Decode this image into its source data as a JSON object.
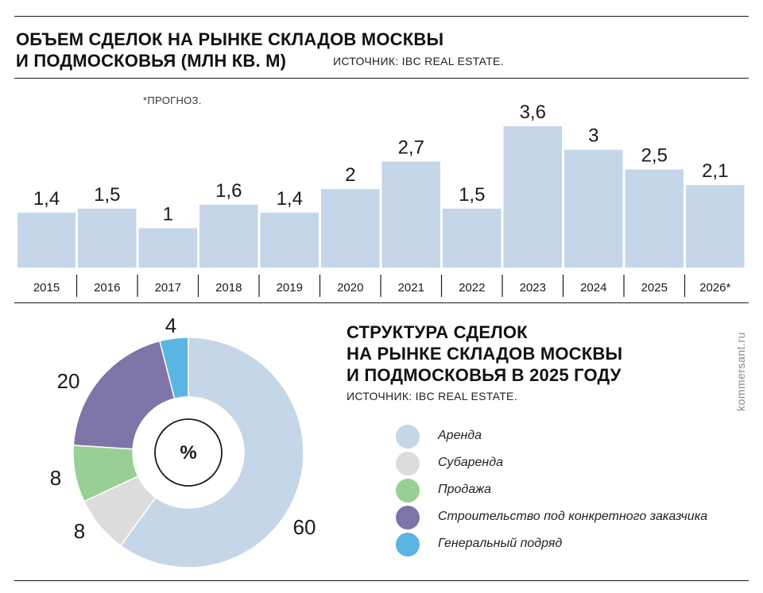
{
  "header": {
    "title_line1": "ОБЪЕМ СДЕЛОК НА РЫНКЕ СКЛАДОВ МОСКВЫ",
    "title_line2": "И ПОДМОСКОВЬЯ (МЛН КВ. М)",
    "source": "ИСТОЧНИК: IBC REAL ESTATE.",
    "note": "*ПРОГНОЗ."
  },
  "pie_header": {
    "title_line1": "СТРУКТУРА СДЕЛОК",
    "title_line2": "НА РЫНКЕ СКЛАДОВ МОСКВЫ",
    "title_line3": "И ПОДМОСКОВЬЯ В 2025 ГОДУ",
    "source": "ИСТОЧНИК: IBC REAL ESTATE."
  },
  "watermark": "kommersant.ru",
  "colors": {
    "bar": "#c5d6e8",
    "arenda": "#c5d6e8",
    "subarenda": "#dcdcdc",
    "prodazha": "#97cf95",
    "stroitelstvo": "#7f74a8",
    "genpodryad": "#5ab5e3"
  },
  "chart_data": [
    {
      "type": "bar",
      "categories": [
        "2015",
        "2016",
        "2017",
        "2018",
        "2019",
        "2020",
        "2021",
        "2022",
        "2023",
        "2024",
        "2025",
        "2026*"
      ],
      "values": [
        1.4,
        1.5,
        1,
        1.6,
        1.4,
        2,
        2.7,
        1.5,
        3.6,
        3,
        2.5,
        2.1
      ],
      "value_labels": [
        "1,4",
        "1,5",
        "1",
        "1,6",
        "1,4",
        "2",
        "2,7",
        "1,5",
        "3,6",
        "3",
        "2,5",
        "2,1"
      ],
      "title": "ОБЪЕМ СДЕЛОК НА РЫНКЕ СКЛАДОВ МОСКВЫ И ПОДМОСКОВЬЯ (МЛН КВ. М)",
      "ylim": [
        0,
        3.6
      ],
      "grid": false
    },
    {
      "type": "pie",
      "center_label": "%",
      "title": "СТРУКТУРА СДЕЛОК НА РЫНКЕ СКЛАДОВ МОСКВЫ И ПОДМОСКОВЬЯ В 2025 ГОДУ",
      "slices": [
        {
          "name": "Аренда",
          "value": 60,
          "color": "#c5d6e8"
        },
        {
          "name": "Субаренда",
          "value": 8,
          "color": "#dcdcdc"
        },
        {
          "name": "Продажа",
          "value": 8,
          "color": "#97cf95"
        },
        {
          "name": "Строительство под конкретного заказчика",
          "value": 20,
          "color": "#7f74a8"
        },
        {
          "name": "Генеральный подряд",
          "value": 4,
          "color": "#5ab5e3"
        }
      ]
    }
  ]
}
